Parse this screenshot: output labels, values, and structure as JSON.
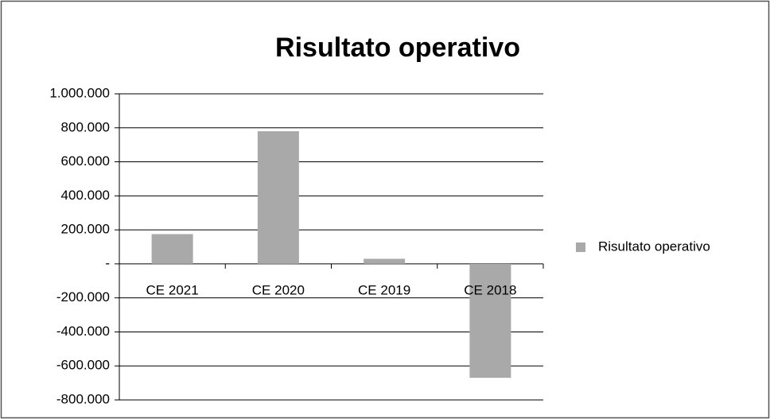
{
  "chart_data": {
    "type": "bar",
    "title": "Risultato operativo",
    "categories": [
      "CE 2021",
      "CE 2020",
      "CE 2019",
      "CE 2018"
    ],
    "series": [
      {
        "name": "Risultato operativo",
        "color": "#a9a9a9",
        "values": [
          175000,
          780000,
          30000,
          -670000
        ]
      }
    ],
    "ylim": [
      -800000,
      1000000
    ],
    "yticks": [
      {
        "value": -800000,
        "label": "-800.000"
      },
      {
        "value": -600000,
        "label": "-600.000"
      },
      {
        "value": -400000,
        "label": "-400.000"
      },
      {
        "value": -200000,
        "label": "-200.000"
      },
      {
        "value": 0,
        "label": "-"
      },
      {
        "value": 200000,
        "label": "200.000"
      },
      {
        "value": 400000,
        "label": "400.000"
      },
      {
        "value": 600000,
        "label": "600.000"
      },
      {
        "value": 800000,
        "label": "800.000"
      },
      {
        "value": 1000000,
        "label": "1.000.000"
      }
    ],
    "grid": true,
    "legend": "right"
  }
}
